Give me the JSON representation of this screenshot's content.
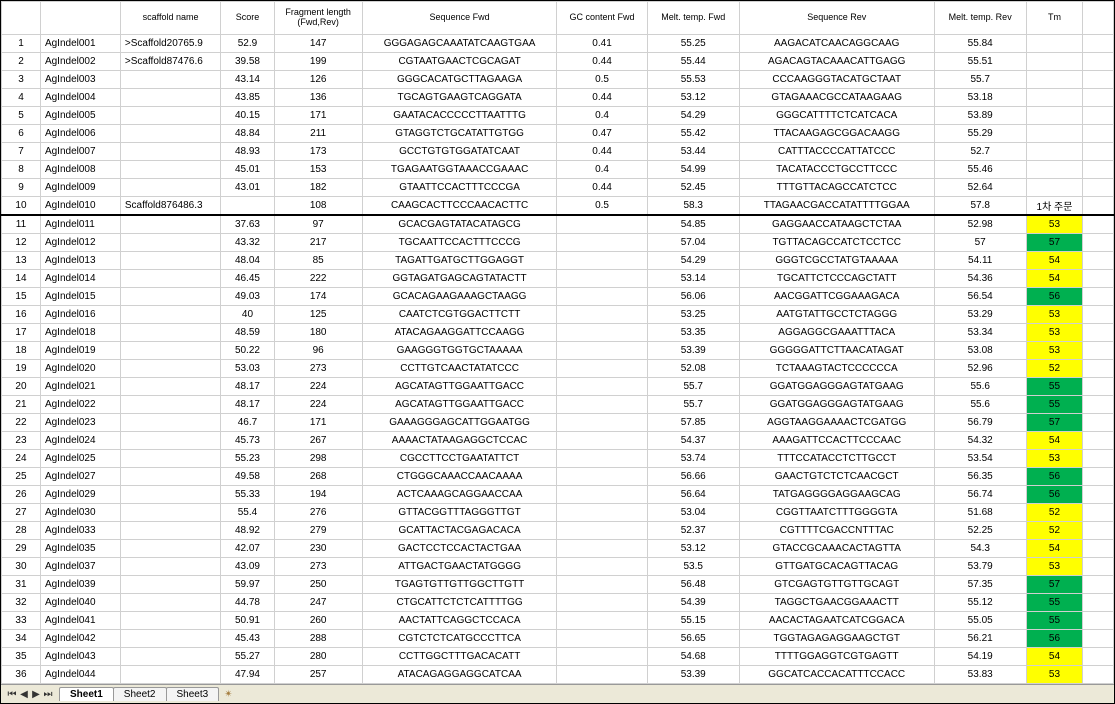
{
  "colors": {
    "yellow": "#ffff00",
    "green": "#00b050"
  },
  "headers": {
    "rownum": "",
    "id": "",
    "scaffold": "scaffold name",
    "score": "Score",
    "frag": "Fragment length (Fwd,Rev)",
    "seqFwd": "Sequence Fwd",
    "gc": "GC content Fwd",
    "mtf": "Melt. temp. Fwd",
    "seqRev": "Sequence Rev",
    "mtr": "Melt. temp. Rev",
    "tm": "Tm"
  },
  "tabs": {
    "sheet1": "Sheet1",
    "sheet2": "Sheet2",
    "sheet3": "Sheet3"
  },
  "rows": [
    {
      "n": 1,
      "id": "AgIndel001",
      "scaf": ">Scaffold20765.9",
      "score": "52.9",
      "frag": "147",
      "fwd": "GGGAGAGCAAATATCAAGTGAA",
      "gc": "0.41",
      "mtf": "55.25",
      "rev": "AAGACATCAACAGGCAAG",
      "mtr": "55.84",
      "tm": "",
      "tmColor": ""
    },
    {
      "n": 2,
      "id": "AgIndel002",
      "scaf": ">Scaffold87476.6",
      "score": "39.58",
      "frag": "199",
      "fwd": "CGTAATGAACTCGCAGAT",
      "gc": "0.44",
      "mtf": "55.44",
      "rev": "AGACAGTACAAACATTGAGG",
      "mtr": "55.51",
      "tm": "",
      "tmColor": ""
    },
    {
      "n": 3,
      "id": "AgIndel003",
      "scaf": "",
      "score": "43.14",
      "frag": "126",
      "fwd": "GGGCACATGCTTAGAAGA",
      "gc": "0.5",
      "mtf": "55.53",
      "rev": "CCCAAGGGTACATGCTAAT",
      "mtr": "55.7",
      "tm": "",
      "tmColor": ""
    },
    {
      "n": 4,
      "id": "AgIndel004",
      "scaf": "",
      "score": "43.85",
      "frag": "136",
      "fwd": "TGCAGTGAAGTCAGGATA",
      "gc": "0.44",
      "mtf": "53.12",
      "rev": "GTAGAAACGCCATAAGAAG",
      "mtr": "53.18",
      "tm": "",
      "tmColor": ""
    },
    {
      "n": 5,
      "id": "AgIndel005",
      "scaf": "",
      "score": "40.15",
      "frag": "171",
      "fwd": "GAATACACCCCCTTAATTTG",
      "gc": "0.4",
      "mtf": "54.29",
      "rev": "GGGCATTTTCTCATCACA",
      "mtr": "53.89",
      "tm": "",
      "tmColor": ""
    },
    {
      "n": 6,
      "id": "AgIndel006",
      "scaf": "",
      "score": "48.84",
      "frag": "211",
      "fwd": "GTAGGTCTGCATATTGTGG",
      "gc": "0.47",
      "mtf": "55.42",
      "rev": "TTACAAGAGCGGACAAGG",
      "mtr": "55.29",
      "tm": "",
      "tmColor": ""
    },
    {
      "n": 7,
      "id": "AgIndel007",
      "scaf": "",
      "score": "48.93",
      "frag": "173",
      "fwd": "GCCTGTGTGGATATCAAT",
      "gc": "0.44",
      "mtf": "53.44",
      "rev": "CATTTACCCCATTATCCC",
      "mtr": "52.7",
      "tm": "",
      "tmColor": ""
    },
    {
      "n": 8,
      "id": "AgIndel008",
      "scaf": "",
      "score": "45.01",
      "frag": "153",
      "fwd": "TGAGAATGGTAAACCGAAAC",
      "gc": "0.4",
      "mtf": "54.99",
      "rev": "TACATACCCTGCCTTCCC",
      "mtr": "55.46",
      "tm": "",
      "tmColor": ""
    },
    {
      "n": 9,
      "id": "AgIndel009",
      "scaf": "",
      "score": "43.01",
      "frag": "182",
      "fwd": "GTAATTCCACTTTCCCGA",
      "gc": "0.44",
      "mtf": "52.45",
      "rev": "TTTGTTACAGCCATCTCC",
      "mtr": "52.64",
      "tm": "",
      "tmColor": ""
    },
    {
      "n": 10,
      "id": "AgIndel010",
      "scaf": "Scaffold876486.3",
      "score": "",
      "frag": "108",
      "fwd": "CAAGCACTTCCCAACACTTC",
      "gc": "0.5",
      "mtf": "58.3",
      "rev": "TTAGAACGACCATATTTTGGAA",
      "mtr": "57.8",
      "tm": "1차 주문",
      "tmColor": "",
      "thick": true
    },
    {
      "n": 11,
      "id": "AgIndel011",
      "scaf": "",
      "score": "37.63",
      "frag": "97",
      "fwd": "GCACGAGTATACATAGCG",
      "gc": "",
      "mtf": "54.85",
      "rev": "GAGGAACCATAAGCTCTAA",
      "mtr": "52.98",
      "tm": "53",
      "tmColor": "yellow"
    },
    {
      "n": 12,
      "id": "AgIndel012",
      "scaf": "",
      "score": "43.32",
      "frag": "217",
      "fwd": "TGCAATTCCACTTTCCCG",
      "gc": "",
      "mtf": "57.04",
      "rev": "TGTTACAGCCATCTCCTCC",
      "mtr": "57",
      "tm": "57",
      "tmColor": "green"
    },
    {
      "n": 13,
      "id": "AgIndel013",
      "scaf": "",
      "score": "48.04",
      "frag": "85",
      "fwd": "TAGATTGATGCTTGGAGGT",
      "gc": "",
      "mtf": "54.29",
      "rev": "GGGTCGCCTATGTAAAAA",
      "mtr": "54.11",
      "tm": "54",
      "tmColor": "yellow"
    },
    {
      "n": 14,
      "id": "AgIndel014",
      "scaf": "",
      "score": "46.45",
      "frag": "222",
      "fwd": "GGTAGATGAGCAGTATACTT",
      "gc": "",
      "mtf": "53.14",
      "rev": "TGCATTCTCCCAGCTATT",
      "mtr": "54.36",
      "tm": "54",
      "tmColor": "yellow"
    },
    {
      "n": 15,
      "id": "AgIndel015",
      "scaf": "",
      "score": "49.03",
      "frag": "174",
      "fwd": "GCACAGAAGAAAGCTAAGG",
      "gc": "",
      "mtf": "56.06",
      "rev": "AACGGATTCGGAAAGACA",
      "mtr": "56.54",
      "tm": "56",
      "tmColor": "green"
    },
    {
      "n": 16,
      "id": "AgIndel016",
      "scaf": "",
      "score": "40",
      "frag": "125",
      "fwd": "CAATCTCGTGGACTTCTT",
      "gc": "",
      "mtf": "53.25",
      "rev": "AATGTATTGCCTCTAGGG",
      "mtr": "53.29",
      "tm": "53",
      "tmColor": "yellow"
    },
    {
      "n": 17,
      "id": "AgIndel018",
      "scaf": "",
      "score": "48.59",
      "frag": "180",
      "fwd": "ATACAGAAGGATTCCAAGG",
      "gc": "",
      "mtf": "53.35",
      "rev": "AGGAGGCGAAATTTACA",
      "mtr": "53.34",
      "tm": "53",
      "tmColor": "yellow"
    },
    {
      "n": 18,
      "id": "AgIndel019",
      "scaf": "",
      "score": "50.22",
      "frag": "96",
      "fwd": "GAAGGGTGGTGCTAAAAA",
      "gc": "",
      "mtf": "53.39",
      "rev": "GGGGGATTCTTAACATAGAT",
      "mtr": "53.08",
      "tm": "53",
      "tmColor": "yellow"
    },
    {
      "n": 19,
      "id": "AgIndel020",
      "scaf": "",
      "score": "53.03",
      "frag": "273",
      "fwd": "CCTTGTCAACTATATCCC",
      "gc": "",
      "mtf": "52.08",
      "rev": "TCTAAAGTACTCCCCCCA",
      "mtr": "52.96",
      "tm": "52",
      "tmColor": "yellow"
    },
    {
      "n": 20,
      "id": "AgIndel021",
      "scaf": "",
      "score": "48.17",
      "frag": "224",
      "fwd": "AGCATAGTTGGAATTGACC",
      "gc": "",
      "mtf": "55.7",
      "rev": "GGATGGAGGGAGTATGAAG",
      "mtr": "55.6",
      "tm": "55",
      "tmColor": "green"
    },
    {
      "n": 21,
      "id": "AgIndel022",
      "scaf": "",
      "score": "48.17",
      "frag": "224",
      "fwd": "AGCATAGTTGGAATTGACC",
      "gc": "",
      "mtf": "55.7",
      "rev": "GGATGGAGGGAGTATGAAG",
      "mtr": "55.6",
      "tm": "55",
      "tmColor": "green"
    },
    {
      "n": 22,
      "id": "AgIndel023",
      "scaf": "",
      "score": "46.7",
      "frag": "171",
      "fwd": "GAAAGGGAGCATTGGAATGG",
      "gc": "",
      "mtf": "57.85",
      "rev": "AGGTAAGGAAAACTCGATGG",
      "mtr": "56.79",
      "tm": "57",
      "tmColor": "green"
    },
    {
      "n": 23,
      "id": "AgIndel024",
      "scaf": "",
      "score": "45.73",
      "frag": "267",
      "fwd": "AAAACTATAAGAGGCTCCAC",
      "gc": "",
      "mtf": "54.37",
      "rev": "AAAGATTCCACTTCCCAAC",
      "mtr": "54.32",
      "tm": "54",
      "tmColor": "yellow"
    },
    {
      "n": 24,
      "id": "AgIndel025",
      "scaf": "",
      "score": "55.23",
      "frag": "298",
      "fwd": "CGCCTTCCTGAATATTCT",
      "gc": "",
      "mtf": "53.74",
      "rev": "TTTCCATACCTCTTGCCT",
      "mtr": "53.54",
      "tm": "53",
      "tmColor": "yellow"
    },
    {
      "n": 25,
      "id": "AgIndel027",
      "scaf": "",
      "score": "49.58",
      "frag": "268",
      "fwd": "CTGGGCAAACCAACAAAA",
      "gc": "",
      "mtf": "56.66",
      "rev": "GAACTGTCTCTCAACGCT",
      "mtr": "56.35",
      "tm": "56",
      "tmColor": "green"
    },
    {
      "n": 26,
      "id": "AgIndel029",
      "scaf": "",
      "score": "55.33",
      "frag": "194",
      "fwd": "ACTCAAAGCAGGAACCAA",
      "gc": "",
      "mtf": "56.64",
      "rev": "TATGAGGGGAGGAAGCAG",
      "mtr": "56.74",
      "tm": "56",
      "tmColor": "green"
    },
    {
      "n": 27,
      "id": "AgIndel030",
      "scaf": "",
      "score": "55.4",
      "frag": "276",
      "fwd": "GTTACGGTTTAGGGTTGT",
      "gc": "",
      "mtf": "53.04",
      "rev": "CGGTTAATCTTTGGGGTA",
      "mtr": "51.68",
      "tm": "52",
      "tmColor": "yellow"
    },
    {
      "n": 28,
      "id": "AgIndel033",
      "scaf": "",
      "score": "48.92",
      "frag": "279",
      "fwd": "GCATTACTACGAGACACA",
      "gc": "",
      "mtf": "52.37",
      "rev": "CGTTTTCGACCNTTTAC",
      "mtr": "52.25",
      "tm": "52",
      "tmColor": "yellow"
    },
    {
      "n": 29,
      "id": "AgIndel035",
      "scaf": "",
      "score": "42.07",
      "frag": "230",
      "fwd": "GACTCCTCCACTACTGAA",
      "gc": "",
      "mtf": "53.12",
      "rev": "GTACCGCAAACACTAGTTA",
      "mtr": "54.3",
      "tm": "54",
      "tmColor": "yellow"
    },
    {
      "n": 30,
      "id": "AgIndel037",
      "scaf": "",
      "score": "43.09",
      "frag": "273",
      "fwd": "ATTGACTGAACTATGGGG",
      "gc": "",
      "mtf": "53.5",
      "rev": "GTTGATGCACAGTTACAG",
      "mtr": "53.79",
      "tm": "53",
      "tmColor": "yellow"
    },
    {
      "n": 31,
      "id": "AgIndel039",
      "scaf": "",
      "score": "59.97",
      "frag": "250",
      "fwd": "TGAGTGTTGTTGGCTTGTT",
      "gc": "",
      "mtf": "56.48",
      "rev": "GTCGAGTGTTGTTGCAGT",
      "mtr": "57.35",
      "tm": "57",
      "tmColor": "green"
    },
    {
      "n": 32,
      "id": "AgIndel040",
      "scaf": "",
      "score": "44.78",
      "frag": "247",
      "fwd": "CTGCATTCTCTCATTTTGG",
      "gc": "",
      "mtf": "54.39",
      "rev": "TAGGCTGAACGGAAACTT",
      "mtr": "55.12",
      "tm": "55",
      "tmColor": "green"
    },
    {
      "n": 33,
      "id": "AgIndel041",
      "scaf": "",
      "score": "50.91",
      "frag": "260",
      "fwd": "AACTATTCAGGCTCCACA",
      "gc": "",
      "mtf": "55.15",
      "rev": "AACACTAGAATCATCGGACA",
      "mtr": "55.05",
      "tm": "55",
      "tmColor": "green"
    },
    {
      "n": 34,
      "id": "AgIndel042",
      "scaf": "",
      "score": "45.43",
      "frag": "288",
      "fwd": "CGTCTCTCATGCCCTTCA",
      "gc": "",
      "mtf": "56.65",
      "rev": "TGGTAGAGAGGAAGCTGT",
      "mtr": "56.21",
      "tm": "56",
      "tmColor": "green"
    },
    {
      "n": 35,
      "id": "AgIndel043",
      "scaf": "",
      "score": "55.27",
      "frag": "280",
      "fwd": "CCTTGGCTTTGACACATT",
      "gc": "",
      "mtf": "54.68",
      "rev": "TTTTGGAGGTCGTGAGTT",
      "mtr": "54.19",
      "tm": "54",
      "tmColor": "yellow"
    },
    {
      "n": 36,
      "id": "AgIndel044",
      "scaf": "",
      "score": "47.94",
      "frag": "257",
      "fwd": "ATACAGAGGAGGCATCAA",
      "gc": "",
      "mtf": "53.39",
      "rev": "GGCATCACCACATTTCCACC",
      "mtr": "53.83",
      "tm": "53",
      "tmColor": "yellow"
    }
  ]
}
